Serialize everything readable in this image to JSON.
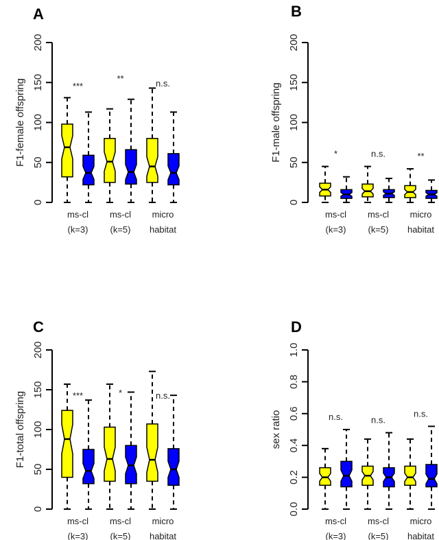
{
  "chart_data": [
    {
      "type": "boxplot",
      "panel": "A",
      "ylabel": "F1-female offspring",
      "ylim": [
        0,
        200
      ],
      "yticks": [
        "0",
        "50",
        "100",
        "150",
        "200"
      ],
      "groups": [
        {
          "l1": "ms-cl",
          "l2": "(k=3)"
        },
        {
          "l1": "ms-cl",
          "l2": "(k=5)"
        },
        {
          "l1": "micro",
          "l2": "habitat"
        }
      ],
      "significance": [
        "***",
        "**",
        "n.s."
      ],
      "boxes": [
        {
          "color": "yellow",
          "stats": [
            0,
            32,
            69,
            98,
            131
          ]
        },
        {
          "color": "blue",
          "stats": [
            0,
            22,
            37,
            59,
            113
          ]
        },
        {
          "color": "yellow",
          "stats": [
            0,
            25,
            51,
            80,
            117
          ]
        },
        {
          "color": "blue",
          "stats": [
            0,
            23,
            38,
            66,
            129
          ]
        },
        {
          "color": "yellow",
          "stats": [
            0,
            25,
            45,
            80,
            143
          ]
        },
        {
          "color": "blue",
          "stats": [
            0,
            22,
            37,
            61,
            113
          ]
        }
      ]
    },
    {
      "type": "boxplot",
      "panel": "B",
      "ylabel": "F1-male offspring",
      "ylim": [
        0,
        200
      ],
      "yticks": [
        "0",
        "50",
        "100",
        "150",
        "200"
      ],
      "groups": [
        {
          "l1": "ms-cl",
          "l2": "(k=3)"
        },
        {
          "l1": "ms-cl",
          "l2": "(k=5)"
        },
        {
          "l1": "micro",
          "l2": "habitat"
        }
      ],
      "significance": [
        "*",
        "n.s.",
        "**"
      ],
      "boxes": [
        {
          "color": "yellow",
          "stats": [
            0,
            8,
            16,
            24,
            45
          ]
        },
        {
          "color": "blue",
          "stats": [
            0,
            5,
            10,
            16,
            32
          ]
        },
        {
          "color": "yellow",
          "stats": [
            0,
            7,
            14,
            23,
            45
          ]
        },
        {
          "color": "blue",
          "stats": [
            0,
            6,
            11,
            16,
            30
          ]
        },
        {
          "color": "yellow",
          "stats": [
            0,
            6,
            13,
            21,
            42
          ]
        },
        {
          "color": "blue",
          "stats": [
            0,
            5,
            10,
            15,
            28
          ]
        }
      ]
    },
    {
      "type": "boxplot",
      "panel": "C",
      "ylabel": "F1-total offspring",
      "ylim": [
        0,
        200
      ],
      "yticks": [
        "0",
        "50",
        "100",
        "150",
        "200"
      ],
      "groups": [
        {
          "l1": "ms-cl",
          "l2": "(k=3)"
        },
        {
          "l1": "ms-cl",
          "l2": "(k=5)"
        },
        {
          "l1": "micro",
          "l2": "habitat"
        }
      ],
      "significance": [
        "***",
        "*",
        "n.s."
      ],
      "boxes": [
        {
          "color": "yellow",
          "stats": [
            0,
            40,
            88,
            124,
            157
          ]
        },
        {
          "color": "blue",
          "stats": [
            0,
            32,
            48,
            75,
            137
          ]
        },
        {
          "color": "yellow",
          "stats": [
            0,
            35,
            63,
            103,
            157
          ]
        },
        {
          "color": "blue",
          "stats": [
            0,
            32,
            55,
            80,
            147
          ]
        },
        {
          "color": "yellow",
          "stats": [
            0,
            35,
            62,
            107,
            173
          ]
        },
        {
          "color": "blue",
          "stats": [
            0,
            30,
            50,
            76,
            143
          ]
        }
      ]
    },
    {
      "type": "boxplot",
      "panel": "D",
      "ylabel": "sex ratio",
      "ylim": [
        0,
        1
      ],
      "yticks": [
        "0.0",
        "0.2",
        "0.4",
        "0.6",
        "0.8",
        "1.0"
      ],
      "groups": [
        {
          "l1": "ms-cl",
          "l2": "(k=3)"
        },
        {
          "l1": "ms-cl",
          "l2": "(k=5)"
        },
        {
          "l1": "micro",
          "l2": "habitat"
        }
      ],
      "significance": [
        "n.s.",
        "n.s.",
        "n.s."
      ],
      "boxes": [
        {
          "color": "yellow",
          "stats": [
            0,
            0.15,
            0.2,
            0.26,
            0.38
          ]
        },
        {
          "color": "blue",
          "stats": [
            0,
            0.14,
            0.21,
            0.3,
            0.5
          ]
        },
        {
          "color": "yellow",
          "stats": [
            0,
            0.15,
            0.21,
            0.27,
            0.44
          ]
        },
        {
          "color": "blue",
          "stats": [
            0,
            0.14,
            0.2,
            0.26,
            0.48
          ]
        },
        {
          "color": "yellow",
          "stats": [
            0,
            0.15,
            0.2,
            0.27,
            0.44
          ]
        },
        {
          "color": "blue",
          "stats": [
            0,
            0.14,
            0.19,
            0.28,
            0.52
          ]
        }
      ]
    }
  ],
  "colors": {
    "yellow": "#ffff00",
    "blue": "#0000ff"
  }
}
